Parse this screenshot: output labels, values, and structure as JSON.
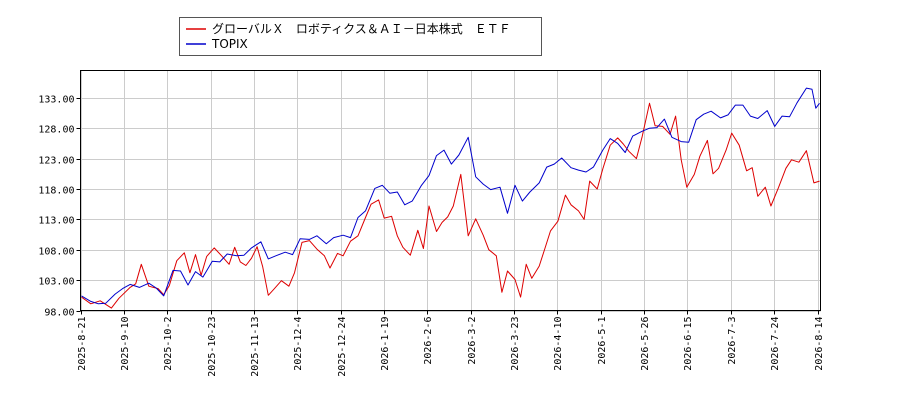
{
  "chart_data": {
    "type": "line",
    "title": "",
    "xlabel": "",
    "ylabel": "",
    "ylim": [
      98,
      137.5
    ],
    "yticks": [
      "98.00",
      "103.00",
      "108.00",
      "113.00",
      "118.00",
      "123.00",
      "128.00",
      "133.00"
    ],
    "grid": true,
    "legend_position": "top-left",
    "x_tick_labels": [
      "2025-8-21",
      "2025-9-10",
      "2025-10-2",
      "2025-10-23",
      "2025-11-13",
      "2025-12-4",
      "2025-12-24",
      "2026-1-19",
      "2026-2-6",
      "2026-3-2",
      "2026-3-23",
      "2026-4-10",
      "2026-5-1",
      "2026-5-26",
      "2026-6-15",
      "2026-7-3",
      "2026-7-24",
      "2026-8-14"
    ],
    "series": [
      {
        "name": "グローバルＸ　ロボティクス＆ＡＩ－日本株式　ＥＴＦ",
        "color": "#dd0000",
        "values": [
          [
            0,
            100.2
          ],
          [
            5,
            99.1
          ],
          [
            10,
            99.6
          ],
          [
            16,
            98.4
          ],
          [
            20,
            100.0
          ],
          [
            26,
            101.8
          ],
          [
            29,
            102.4
          ],
          [
            32,
            105.6
          ],
          [
            36,
            102.0
          ],
          [
            41,
            101.6
          ],
          [
            44,
            100.6
          ],
          [
            47,
            102.1
          ],
          [
            51,
            106.2
          ],
          [
            55,
            107.5
          ],
          [
            58,
            104.2
          ],
          [
            61,
            107.2
          ],
          [
            64,
            103.8
          ],
          [
            67,
            106.9
          ],
          [
            71,
            108.3
          ],
          [
            75,
            107.0
          ],
          [
            79,
            105.6
          ],
          [
            82,
            108.4
          ],
          [
            85,
            106.0
          ],
          [
            88,
            105.4
          ],
          [
            91,
            106.6
          ],
          [
            94,
            108.5
          ],
          [
            97,
            105.2
          ],
          [
            100,
            100.5
          ],
          [
            103,
            101.5
          ],
          [
            107,
            102.9
          ],
          [
            111,
            102.0
          ],
          [
            114,
            104.2
          ],
          [
            118,
            109.2
          ],
          [
            122,
            109.5
          ],
          [
            126,
            108.1
          ],
          [
            130,
            107.0
          ],
          [
            133,
            105.0
          ],
          [
            137,
            107.4
          ],
          [
            140,
            107.0
          ],
          [
            144,
            109.4
          ],
          [
            148,
            110.3
          ],
          [
            152,
            113.3
          ],
          [
            155,
            115.5
          ],
          [
            159,
            116.2
          ],
          [
            162,
            113.2
          ],
          [
            166,
            113.5
          ],
          [
            169,
            110.3
          ],
          [
            172,
            108.4
          ],
          [
            176,
            107.1
          ],
          [
            180,
            111.2
          ],
          [
            183,
            108.2
          ],
          [
            186,
            115.2
          ],
          [
            190,
            111.0
          ],
          [
            193,
            112.5
          ],
          [
            196,
            113.4
          ],
          [
            199,
            115.2
          ],
          [
            203,
            120.4
          ],
          [
            207,
            110.3
          ],
          [
            211,
            113.1
          ],
          [
            215,
            110.4
          ],
          [
            218,
            108.0
          ],
          [
            222,
            107.0
          ],
          [
            225,
            101.0
          ],
          [
            228,
            104.5
          ],
          [
            232,
            103.1
          ],
          [
            235,
            100.2
          ],
          [
            238,
            105.6
          ],
          [
            241,
            103.3
          ],
          [
            245,
            105.3
          ],
          [
            248,
            108.2
          ],
          [
            251,
            111.1
          ],
          [
            255,
            112.7
          ],
          [
            259,
            117.0
          ],
          [
            262,
            115.4
          ],
          [
            266,
            114.4
          ],
          [
            269,
            113.0
          ],
          [
            272,
            119.3
          ],
          [
            276,
            118.0
          ],
          [
            279,
            121.3
          ],
          [
            283,
            125.2
          ],
          [
            287,
            126.4
          ],
          [
            290,
            125.4
          ],
          [
            293,
            124.2
          ],
          [
            297,
            123.0
          ],
          [
            300,
            126.5
          ],
          [
            304,
            132.1
          ],
          [
            307,
            128.4
          ],
          [
            311,
            128.3
          ],
          [
            315,
            127.0
          ],
          [
            318,
            130.0
          ],
          [
            321,
            122.8
          ],
          [
            324,
            118.3
          ],
          [
            328,
            120.4
          ],
          [
            331,
            123.4
          ],
          [
            335,
            126.0
          ],
          [
            338,
            120.5
          ],
          [
            341,
            121.4
          ],
          [
            345,
            124.4
          ],
          [
            348,
            127.2
          ],
          [
            352,
            125.2
          ],
          [
            356,
            121.0
          ],
          [
            359,
            121.5
          ],
          [
            362,
            116.8
          ],
          [
            366,
            118.3
          ],
          [
            369,
            115.2
          ],
          [
            373,
            118.2
          ],
          [
            377,
            121.4
          ],
          [
            380,
            122.8
          ],
          [
            384,
            122.4
          ],
          [
            388,
            124.3
          ],
          [
            392,
            119.0
          ],
          [
            395,
            119.3
          ]
        ]
      },
      {
        "name": "TOPIX",
        "color": "#0000cc",
        "values": [
          [
            0,
            100.4
          ],
          [
            5,
            99.5
          ],
          [
            9,
            99.1
          ],
          [
            13,
            99.2
          ],
          [
            18,
            100.7
          ],
          [
            22,
            101.6
          ],
          [
            26,
            102.3
          ],
          [
            31,
            101.8
          ],
          [
            36,
            102.5
          ],
          [
            40,
            101.7
          ],
          [
            44,
            100.4
          ],
          [
            49,
            104.6
          ],
          [
            53,
            104.5
          ],
          [
            57,
            102.2
          ],
          [
            61,
            104.4
          ],
          [
            65,
            103.5
          ],
          [
            70,
            106.1
          ],
          [
            74,
            106.0
          ],
          [
            78,
            107.3
          ],
          [
            83,
            107.0
          ],
          [
            87,
            107.1
          ],
          [
            91,
            108.3
          ],
          [
            96,
            109.3
          ],
          [
            100,
            106.5
          ],
          [
            104,
            107.0
          ],
          [
            109,
            107.6
          ],
          [
            113,
            107.2
          ],
          [
            117,
            109.8
          ],
          [
            122,
            109.7
          ],
          [
            126,
            110.3
          ],
          [
            131,
            109.0
          ],
          [
            135,
            110.0
          ],
          [
            140,
            110.4
          ],
          [
            144,
            110.0
          ],
          [
            148,
            113.3
          ],
          [
            152,
            114.4
          ],
          [
            157,
            118.1
          ],
          [
            161,
            118.6
          ],
          [
            165,
            117.3
          ],
          [
            169,
            117.5
          ],
          [
            173,
            115.4
          ],
          [
            177,
            116.0
          ],
          [
            182,
            118.6
          ],
          [
            186,
            120.2
          ],
          [
            190,
            123.5
          ],
          [
            194,
            124.4
          ],
          [
            198,
            122.1
          ],
          [
            202,
            123.6
          ],
          [
            207,
            126.5
          ],
          [
            211,
            120.0
          ],
          [
            215,
            118.8
          ],
          [
            219,
            117.9
          ],
          [
            224,
            118.3
          ],
          [
            228,
            114.0
          ],
          [
            232,
            118.6
          ],
          [
            236,
            116.0
          ],
          [
            240,
            117.5
          ],
          [
            245,
            119.0
          ],
          [
            249,
            121.6
          ],
          [
            253,
            122.1
          ],
          [
            257,
            123.1
          ],
          [
            262,
            121.5
          ],
          [
            266,
            121.1
          ],
          [
            270,
            120.8
          ],
          [
            274,
            121.6
          ],
          [
            279,
            124.4
          ],
          [
            283,
            126.3
          ],
          [
            287,
            125.5
          ],
          [
            291,
            124.0
          ],
          [
            295,
            126.7
          ],
          [
            300,
            127.5
          ],
          [
            304,
            128.0
          ],
          [
            308,
            128.1
          ],
          [
            312,
            129.5
          ],
          [
            316,
            126.5
          ],
          [
            321,
            125.8
          ],
          [
            325,
            125.7
          ],
          [
            329,
            129.4
          ],
          [
            333,
            130.3
          ],
          [
            337,
            130.8
          ],
          [
            342,
            129.7
          ],
          [
            346,
            130.2
          ],
          [
            350,
            131.8
          ],
          [
            354,
            131.8
          ],
          [
            358,
            130.0
          ],
          [
            362,
            129.6
          ],
          [
            367,
            130.9
          ],
          [
            371,
            128.3
          ],
          [
            375,
            130.0
          ],
          [
            379,
            129.9
          ],
          [
            383,
            132.2
          ],
          [
            388,
            134.6
          ],
          [
            391,
            134.4
          ],
          [
            393,
            131.3
          ],
          [
            395,
            132.1
          ]
        ]
      }
    ]
  }
}
